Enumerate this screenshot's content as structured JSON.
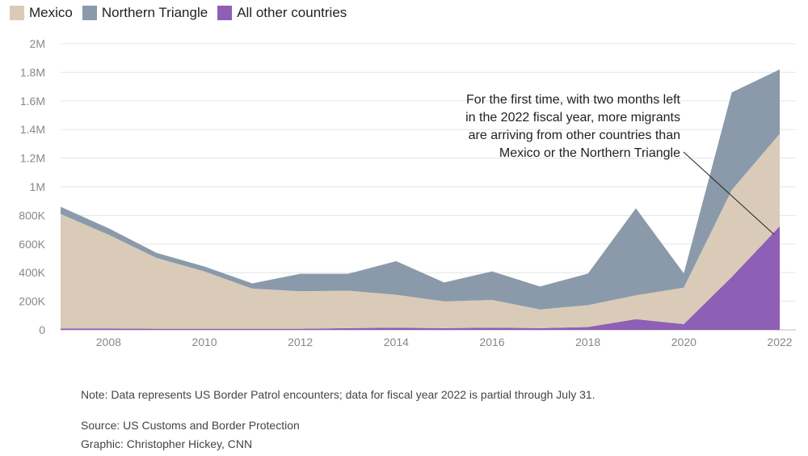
{
  "legend": [
    {
      "label": "Mexico",
      "color": "#d9cbb8"
    },
    {
      "label": "Northern Triangle",
      "color": "#8a9aaa"
    },
    {
      "label": "All other countries",
      "color": "#8e5fb5"
    }
  ],
  "chart_data": {
    "type": "area",
    "stacked": true,
    "x": [
      2007,
      2008,
      2009,
      2010,
      2011,
      2012,
      2013,
      2014,
      2015,
      2016,
      2017,
      2018,
      2019,
      2020,
      2021,
      2022
    ],
    "x_ticks": [
      "2008",
      "2010",
      "2012",
      "2014",
      "2016",
      "2018",
      "2020",
      "2022"
    ],
    "y_ticks": [
      "0",
      "200K",
      "400K",
      "600K",
      "800K",
      "1M",
      "1.2M",
      "1.4M",
      "1.6M",
      "1.8M",
      "2M"
    ],
    "ylim": [
      0,
      2000000
    ],
    "grid": true,
    "legend_position": "top-left",
    "series": [
      {
        "name": "All other countries",
        "color": "#8e5fb5",
        "values": [
          10000,
          10000,
          8000,
          8000,
          8000,
          8000,
          12000,
          15000,
          12000,
          16000,
          12000,
          20000,
          75000,
          40000,
          370000,
          725000
        ]
      },
      {
        "name": "Mexico",
        "color": "#d9cbb8",
        "values": [
          800000,
          655000,
          495000,
          400000,
          280000,
          262000,
          262000,
          230000,
          187000,
          193000,
          131000,
          153000,
          167000,
          255000,
          608000,
          645000
        ]
      },
      {
        "name": "Northern Triangle",
        "color": "#8a9aaa",
        "values": [
          50000,
          45000,
          35000,
          35000,
          37000,
          122000,
          118000,
          235000,
          132000,
          200000,
          160000,
          220000,
          608000,
          100000,
          682000,
          450000
        ]
      }
    ]
  },
  "annotation": {
    "lines": [
      "For the first time, with two months left",
      "in the 2022 fiscal year, more migrants",
      "are arriving from other countries than",
      "Mexico or the Northern Triangle"
    ]
  },
  "footer": {
    "note": "Note: Data represents US Border Patrol encounters; data for fiscal year 2022 is partial through July 31.",
    "source": "Source: US Customs and Border Protection",
    "graphic": "Graphic: Christopher Hickey, CNN"
  }
}
